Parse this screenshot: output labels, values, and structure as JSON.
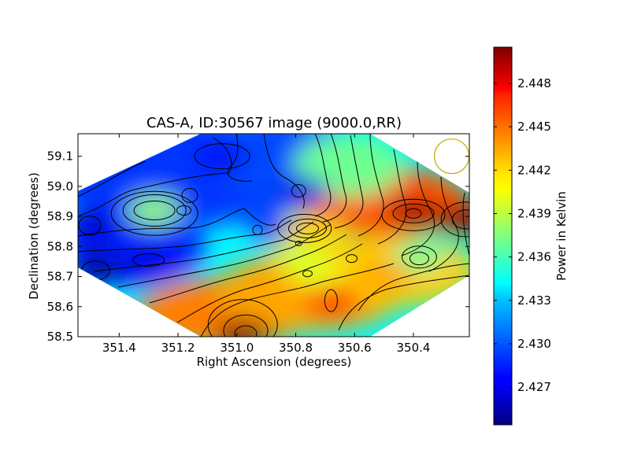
{
  "chart_data": {
    "type": "heatmap",
    "title": "CAS-A, ID:30567 image (9000.0,RR)",
    "xlabel": "Right Ascension (degrees)",
    "ylabel": "Declination (degrees)",
    "xlim": [
      351.54,
      350.21
    ],
    "ylim": [
      58.5,
      59.175
    ],
    "x_ticks": [
      "351.4",
      "351.2",
      "351.0",
      "350.8",
      "350.6",
      "350.4"
    ],
    "x_tick_values": [
      351.4,
      351.2,
      351.0,
      350.8,
      350.6,
      350.4
    ],
    "y_ticks": [
      "58.5",
      "58.6",
      "58.7",
      "58.8",
      "58.9",
      "59.0",
      "59.1"
    ],
    "y_tick_values": [
      58.5,
      58.6,
      58.7,
      58.8,
      58.9,
      59.0,
      59.1
    ],
    "colorbar": {
      "label": "Power in Kelvin",
      "ticks": [
        "2.427",
        "2.430",
        "2.433",
        "2.436",
        "2.439",
        "2.442",
        "2.445",
        "2.448"
      ],
      "tick_values": [
        2.427,
        2.43,
        2.433,
        2.436,
        2.439,
        2.442,
        2.445,
        2.448
      ],
      "range": [
        2.4244,
        2.4505
      ],
      "colormap": "jet"
    },
    "features": [
      {
        "kind": "low",
        "ra": 351.48,
        "dec": 58.72,
        "value": 2.425
      },
      {
        "kind": "low",
        "ra": 351.5,
        "dec": 58.87,
        "value": 2.4265
      },
      {
        "kind": "low",
        "ra": 351.3,
        "dec": 58.75,
        "value": 2.427
      },
      {
        "kind": "low",
        "ra": 351.05,
        "dec": 59.1,
        "value": 2.4275
      },
      {
        "kind": "low",
        "ra": 350.78,
        "dec": 58.98,
        "value": 2.427
      },
      {
        "kind": "low",
        "ra": 351.15,
        "dec": 58.93,
        "value": 2.429
      },
      {
        "kind": "low",
        "ra": 350.87,
        "dec": 58.86,
        "value": 2.429
      },
      {
        "kind": "high",
        "ra": 351.28,
        "dec": 58.92,
        "value": 2.438
      },
      {
        "kind": "high",
        "ra": 350.4,
        "dec": 58.91,
        "value": 2.4495
      },
      {
        "kind": "high",
        "ra": 350.22,
        "dec": 58.89,
        "value": 2.45
      },
      {
        "kind": "high",
        "ra": 350.98,
        "dec": 58.51,
        "value": 2.45
      },
      {
        "kind": "high",
        "ra": 350.68,
        "dec": 58.62,
        "value": 2.4465
      },
      {
        "kind": "high",
        "ra": 350.75,
        "dec": 58.86,
        "value": 2.442
      },
      {
        "kind": "high",
        "ra": 350.38,
        "dec": 58.77,
        "value": 2.437
      },
      {
        "kind": "high",
        "ra": 350.62,
        "dec": 58.77,
        "value": 2.442
      },
      {
        "kind": "high",
        "ra": 350.73,
        "dec": 58.71,
        "value": 2.44
      },
      {
        "kind": "high",
        "ra": 350.5,
        "dec": 58.7,
        "value": 2.443
      }
    ],
    "beam_marker": {
      "ra": 350.27,
      "dec": 59.1,
      "color": "#bdb000"
    }
  }
}
